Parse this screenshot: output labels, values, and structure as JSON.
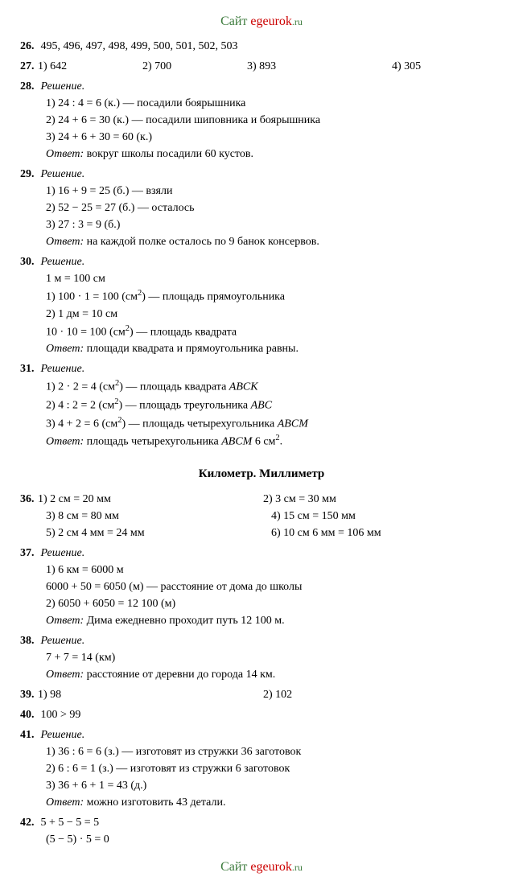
{
  "site": {
    "label_prefix": "Сайт ",
    "name": "egeurok",
    "suffix": ".ru"
  },
  "p26": {
    "num": "26.",
    "text": "495, 496, 497, 498, 499, 500, 501, 502, 503"
  },
  "p27": {
    "num": "27.",
    "a": "1) 642",
    "b": "2) 700",
    "c": "3) 893",
    "d": "4) 305"
  },
  "p28": {
    "num": "28.",
    "label": "Решение.",
    "l1": "1) 24 : 4 = 6 (к.) — посадили боярышника",
    "l2": "2) 24 + 6 = 30 (к.) — посадили шиповника и боярышника",
    "l3": "3) 24 + 6 + 30 = 60 (к.)",
    "ans_label": "Ответ:",
    "ans": " вокруг школы посадили 60 кустов."
  },
  "p29": {
    "num": "29.",
    "label": "Решение.",
    "l1": "1) 16 + 9 = 25 (б.) — взяли",
    "l2": "2) 52 − 25 = 27 (б.) — осталось",
    "l3": "3) 27 : 3 = 9 (б.)",
    "ans_label": "Ответ:",
    "ans": " на каждой полке осталось по 9 банок консервов."
  },
  "p30": {
    "num": "30.",
    "label": "Решение.",
    "l0": "1 м = 100 см",
    "l1a": "1) 100 · 1 = 100 (см",
    "l1b": ") — площадь прямоугольника",
    "l2": "2) 1 дм = 10 см",
    "l3a": "10 · 10 = 100 (см",
    "l3b": ") — площадь квадрата",
    "ans_label": "Ответ:",
    "ans": " площади квадрата и прямоугольника равны."
  },
  "p31": {
    "num": "31.",
    "label": "Решение.",
    "l1a": "1) 2 · 2 = 4 (см",
    "l1b": ") — площадь квадрата ",
    "l1c": "ABCK",
    "l2a": "2) 4 : 2 = 2 (см",
    "l2b": ") — площадь треугольника ",
    "l2c": "ABC",
    "l3a": "3) 4 + 2 = 6 (см",
    "l3b": ") — площадь четырехугольника ",
    "l3c": "ABCM",
    "ans_label": "Ответ:",
    "ans_a": " площадь четырехугольника ",
    "ans_b": "ABCM",
    "ans_c": " 6 см",
    "ans_d": "."
  },
  "section": "Километр. Миллиметр",
  "p36": {
    "num": "36.",
    "r1a": "1) 2 см = 20 мм",
    "r1b": "2) 3 см = 30 мм",
    "r2a": "3) 8 см = 80 мм",
    "r2b": "4) 15 см = 150 мм",
    "r3a": "5) 2 см 4 мм = 24 мм",
    "r3b": "6) 10 см 6 мм = 106 мм"
  },
  "p37": {
    "num": "37.",
    "label": "Решение.",
    "l1": "1) 6 км = 6000 м",
    "l2": "6000 + 50 = 6050 (м) — расстояние от дома до школы",
    "l3": "2) 6050 + 6050 = 12 100 (м)",
    "ans_label": "Ответ:",
    "ans": " Дима ежедневно проходит путь 12 100 м."
  },
  "p38": {
    "num": "38.",
    "label": "Решение.",
    "l1": "7 + 7 = 14 (км)",
    "ans_label": "Ответ:",
    "ans": " расстояние от деревни до города 14 км."
  },
  "p39": {
    "num": "39.",
    "a": "1) 98",
    "b": "2) 102"
  },
  "p40": {
    "num": "40.",
    "text": "100 > 99"
  },
  "p41": {
    "num": "41.",
    "label": "Решение.",
    "l1": "1) 36 : 6 = 6 (з.) — изготовят из стружки 36 заготовок",
    "l2": "2) 6 : 6 = 1 (з.) — изготовят из стружки 6 заготовок",
    "l3": "3) 36 + 6 + 1 = 43 (д.)",
    "ans_label": "Ответ:",
    "ans": " можно изготовить 43 детали."
  },
  "p42": {
    "num": "42.",
    "l1": "5 + 5 − 5 = 5",
    "l2": "(5 − 5) · 5 = 0"
  }
}
